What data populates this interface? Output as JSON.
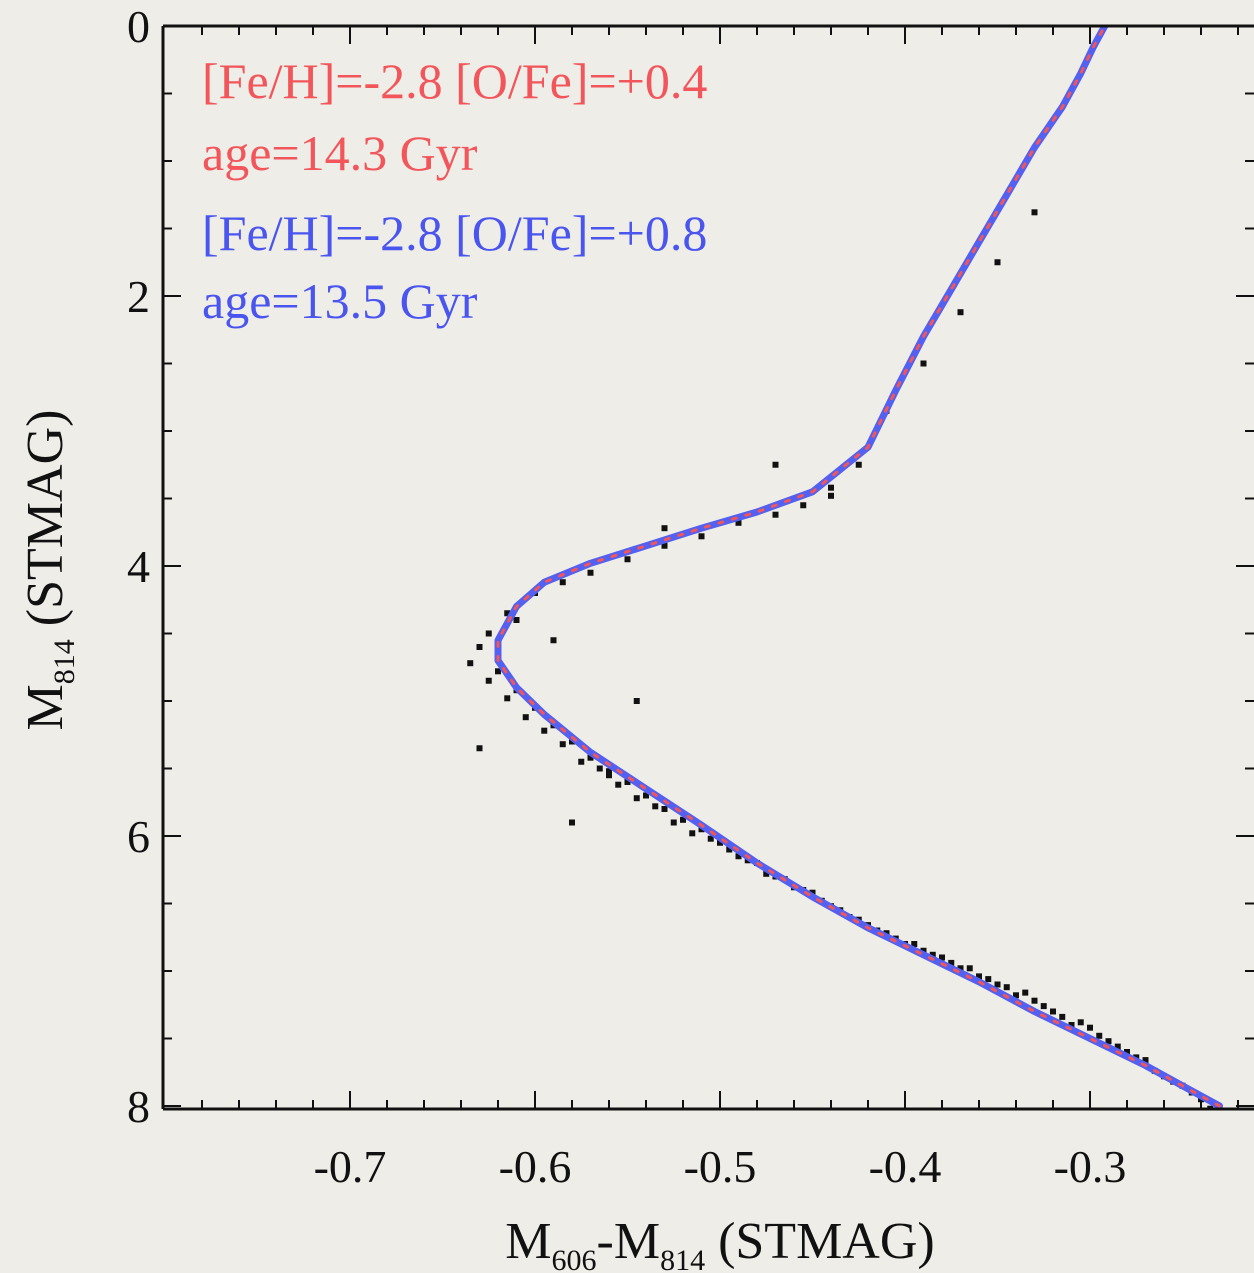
{
  "chart_data": {
    "type": "scatter",
    "xlabel": {
      "main": "M",
      "sub1": "606",
      "mid": "-M",
      "sub2": "814",
      "tail": " (STMAG)"
    },
    "ylabel": {
      "main": "M",
      "sub": "814",
      "tail": " (STMAG)"
    },
    "xlim": [
      -0.79,
      -0.22
    ],
    "ylim": [
      8,
      0
    ],
    "y_inverted": true,
    "xticks": [
      -0.7,
      -0.6,
      -0.5,
      -0.4,
      -0.3
    ],
    "xtick_labels": [
      "-0.7",
      "-0.6",
      "-0.5",
      "-0.4",
      "-0.3"
    ],
    "yticks": [
      0,
      2,
      4,
      6,
      8
    ],
    "ytick_labels": [
      "0",
      "2",
      "4",
      "6",
      "8"
    ],
    "legend_placement": "top-left",
    "legend": [
      {
        "line1": "[Fe/H]=-2.8 [O/Fe]=+0.4",
        "line2": "age=14.3 Gyr",
        "color": "#f2555a"
      },
      {
        "line1": "[Fe/H]=-2.8 [O/Fe]=+0.8",
        "line2": "age=13.5 Gyr",
        "color": "#4a55f0"
      }
    ],
    "series": [
      {
        "kind": "isochrone",
        "style": "solid",
        "color": "#5460f0",
        "x": [
          -0.23,
          -0.25,
          -0.27,
          -0.3,
          -0.33,
          -0.36,
          -0.39,
          -0.42,
          -0.45,
          -0.48,
          -0.51,
          -0.54,
          -0.57,
          -0.595,
          -0.61,
          -0.62,
          -0.62,
          -0.61,
          -0.595,
          -0.57,
          -0.54,
          -0.51,
          -0.48,
          -0.45,
          -0.42,
          -0.405,
          -0.39,
          -0.375,
          -0.36,
          -0.345,
          -0.33,
          -0.315,
          -0.305,
          -0.298,
          -0.292
        ],
        "y": [
          8.0,
          7.85,
          7.7,
          7.5,
          7.3,
          7.08,
          6.88,
          6.68,
          6.45,
          6.2,
          5.92,
          5.65,
          5.38,
          5.1,
          4.9,
          4.7,
          4.55,
          4.3,
          4.12,
          3.98,
          3.85,
          3.72,
          3.6,
          3.45,
          3.12,
          2.7,
          2.3,
          1.95,
          1.6,
          1.25,
          0.9,
          0.6,
          0.35,
          0.15,
          0.0
        ]
      },
      {
        "kind": "isochrone",
        "style": "dotted",
        "color": "#f2555a",
        "x": [
          -0.23,
          -0.25,
          -0.27,
          -0.3,
          -0.33,
          -0.36,
          -0.39,
          -0.42,
          -0.45,
          -0.48,
          -0.51,
          -0.54,
          -0.57,
          -0.595,
          -0.61,
          -0.62,
          -0.62,
          -0.61,
          -0.595,
          -0.57,
          -0.54,
          -0.51,
          -0.48,
          -0.45,
          -0.42,
          -0.405,
          -0.39,
          -0.375,
          -0.36,
          -0.345,
          -0.33,
          -0.315,
          -0.305,
          -0.298,
          -0.292
        ],
        "y": [
          8.0,
          7.85,
          7.7,
          7.5,
          7.3,
          7.08,
          6.88,
          6.68,
          6.45,
          6.2,
          5.92,
          5.65,
          5.38,
          5.1,
          4.9,
          4.7,
          4.55,
          4.3,
          4.12,
          3.98,
          3.85,
          3.72,
          3.6,
          3.45,
          3.12,
          2.7,
          2.3,
          1.95,
          1.6,
          1.25,
          0.9,
          0.6,
          0.35,
          0.15,
          0.0
        ]
      },
      {
        "kind": "stars",
        "color": "#111111",
        "x": [
          -0.24,
          -0.25,
          -0.26,
          -0.27,
          -0.28,
          -0.29,
          -0.3,
          -0.31,
          -0.32,
          -0.33,
          -0.34,
          -0.35,
          -0.36,
          -0.37,
          -0.38,
          -0.39,
          -0.4,
          -0.41,
          -0.42,
          -0.43,
          -0.44,
          -0.45,
          -0.46,
          -0.47,
          -0.48,
          -0.49,
          -0.5,
          -0.51,
          -0.52,
          -0.53,
          -0.54,
          -0.55,
          -0.56,
          -0.57,
          -0.58,
          -0.59,
          -0.6,
          -0.61,
          -0.62,
          -0.63,
          -0.625,
          -0.615,
          -0.6,
          -0.585,
          -0.57,
          -0.55,
          -0.53,
          -0.51,
          -0.49,
          -0.47,
          -0.455,
          -0.44,
          -0.425,
          -0.41,
          -0.39,
          -0.37,
          -0.35,
          -0.33,
          -0.235,
          -0.245,
          -0.255,
          -0.265,
          -0.275,
          -0.285,
          -0.295,
          -0.305,
          -0.315,
          -0.325,
          -0.335,
          -0.345,
          -0.355,
          -0.365,
          -0.375,
          -0.385,
          -0.395,
          -0.405,
          -0.415,
          -0.425,
          -0.435,
          -0.445,
          -0.455,
          -0.465,
          -0.475,
          -0.485,
          -0.495,
          -0.505,
          -0.515,
          -0.525,
          -0.535,
          -0.545,
          -0.555,
          -0.565,
          -0.575,
          -0.585,
          -0.595,
          -0.605,
          -0.615,
          -0.625,
          -0.635,
          -0.58,
          -0.56,
          -0.545,
          -0.53,
          -0.47,
          -0.44,
          -0.63,
          -0.61,
          -0.59
        ],
        "y": [
          7.95,
          7.85,
          7.78,
          7.66,
          7.6,
          7.52,
          7.42,
          7.4,
          7.3,
          7.22,
          7.18,
          7.1,
          7.04,
          6.98,
          6.9,
          6.85,
          6.8,
          6.72,
          6.66,
          6.6,
          6.52,
          6.42,
          6.38,
          6.3,
          6.2,
          6.15,
          6.05,
          5.95,
          5.88,
          5.8,
          5.7,
          5.6,
          5.52,
          5.42,
          5.3,
          5.18,
          5.05,
          4.92,
          4.78,
          4.6,
          4.5,
          4.35,
          4.2,
          4.12,
          4.05,
          3.95,
          3.85,
          3.78,
          3.68,
          3.62,
          3.55,
          3.42,
          3.25,
          2.85,
          2.5,
          2.12,
          1.75,
          1.38,
          8.02,
          7.9,
          7.82,
          7.74,
          7.64,
          7.56,
          7.48,
          7.38,
          7.34,
          7.26,
          7.16,
          7.12,
          7.06,
          6.98,
          6.94,
          6.88,
          6.8,
          6.76,
          6.7,
          6.62,
          6.55,
          6.48,
          6.4,
          6.32,
          6.28,
          6.18,
          6.1,
          6.02,
          5.98,
          5.9,
          5.78,
          5.72,
          5.62,
          5.5,
          5.45,
          5.32,
          5.22,
          5.12,
          4.98,
          4.85,
          4.72,
          5.9,
          5.55,
          5.0,
          3.72,
          3.25,
          3.48,
          5.35,
          4.4,
          4.55
        ]
      }
    ]
  }
}
